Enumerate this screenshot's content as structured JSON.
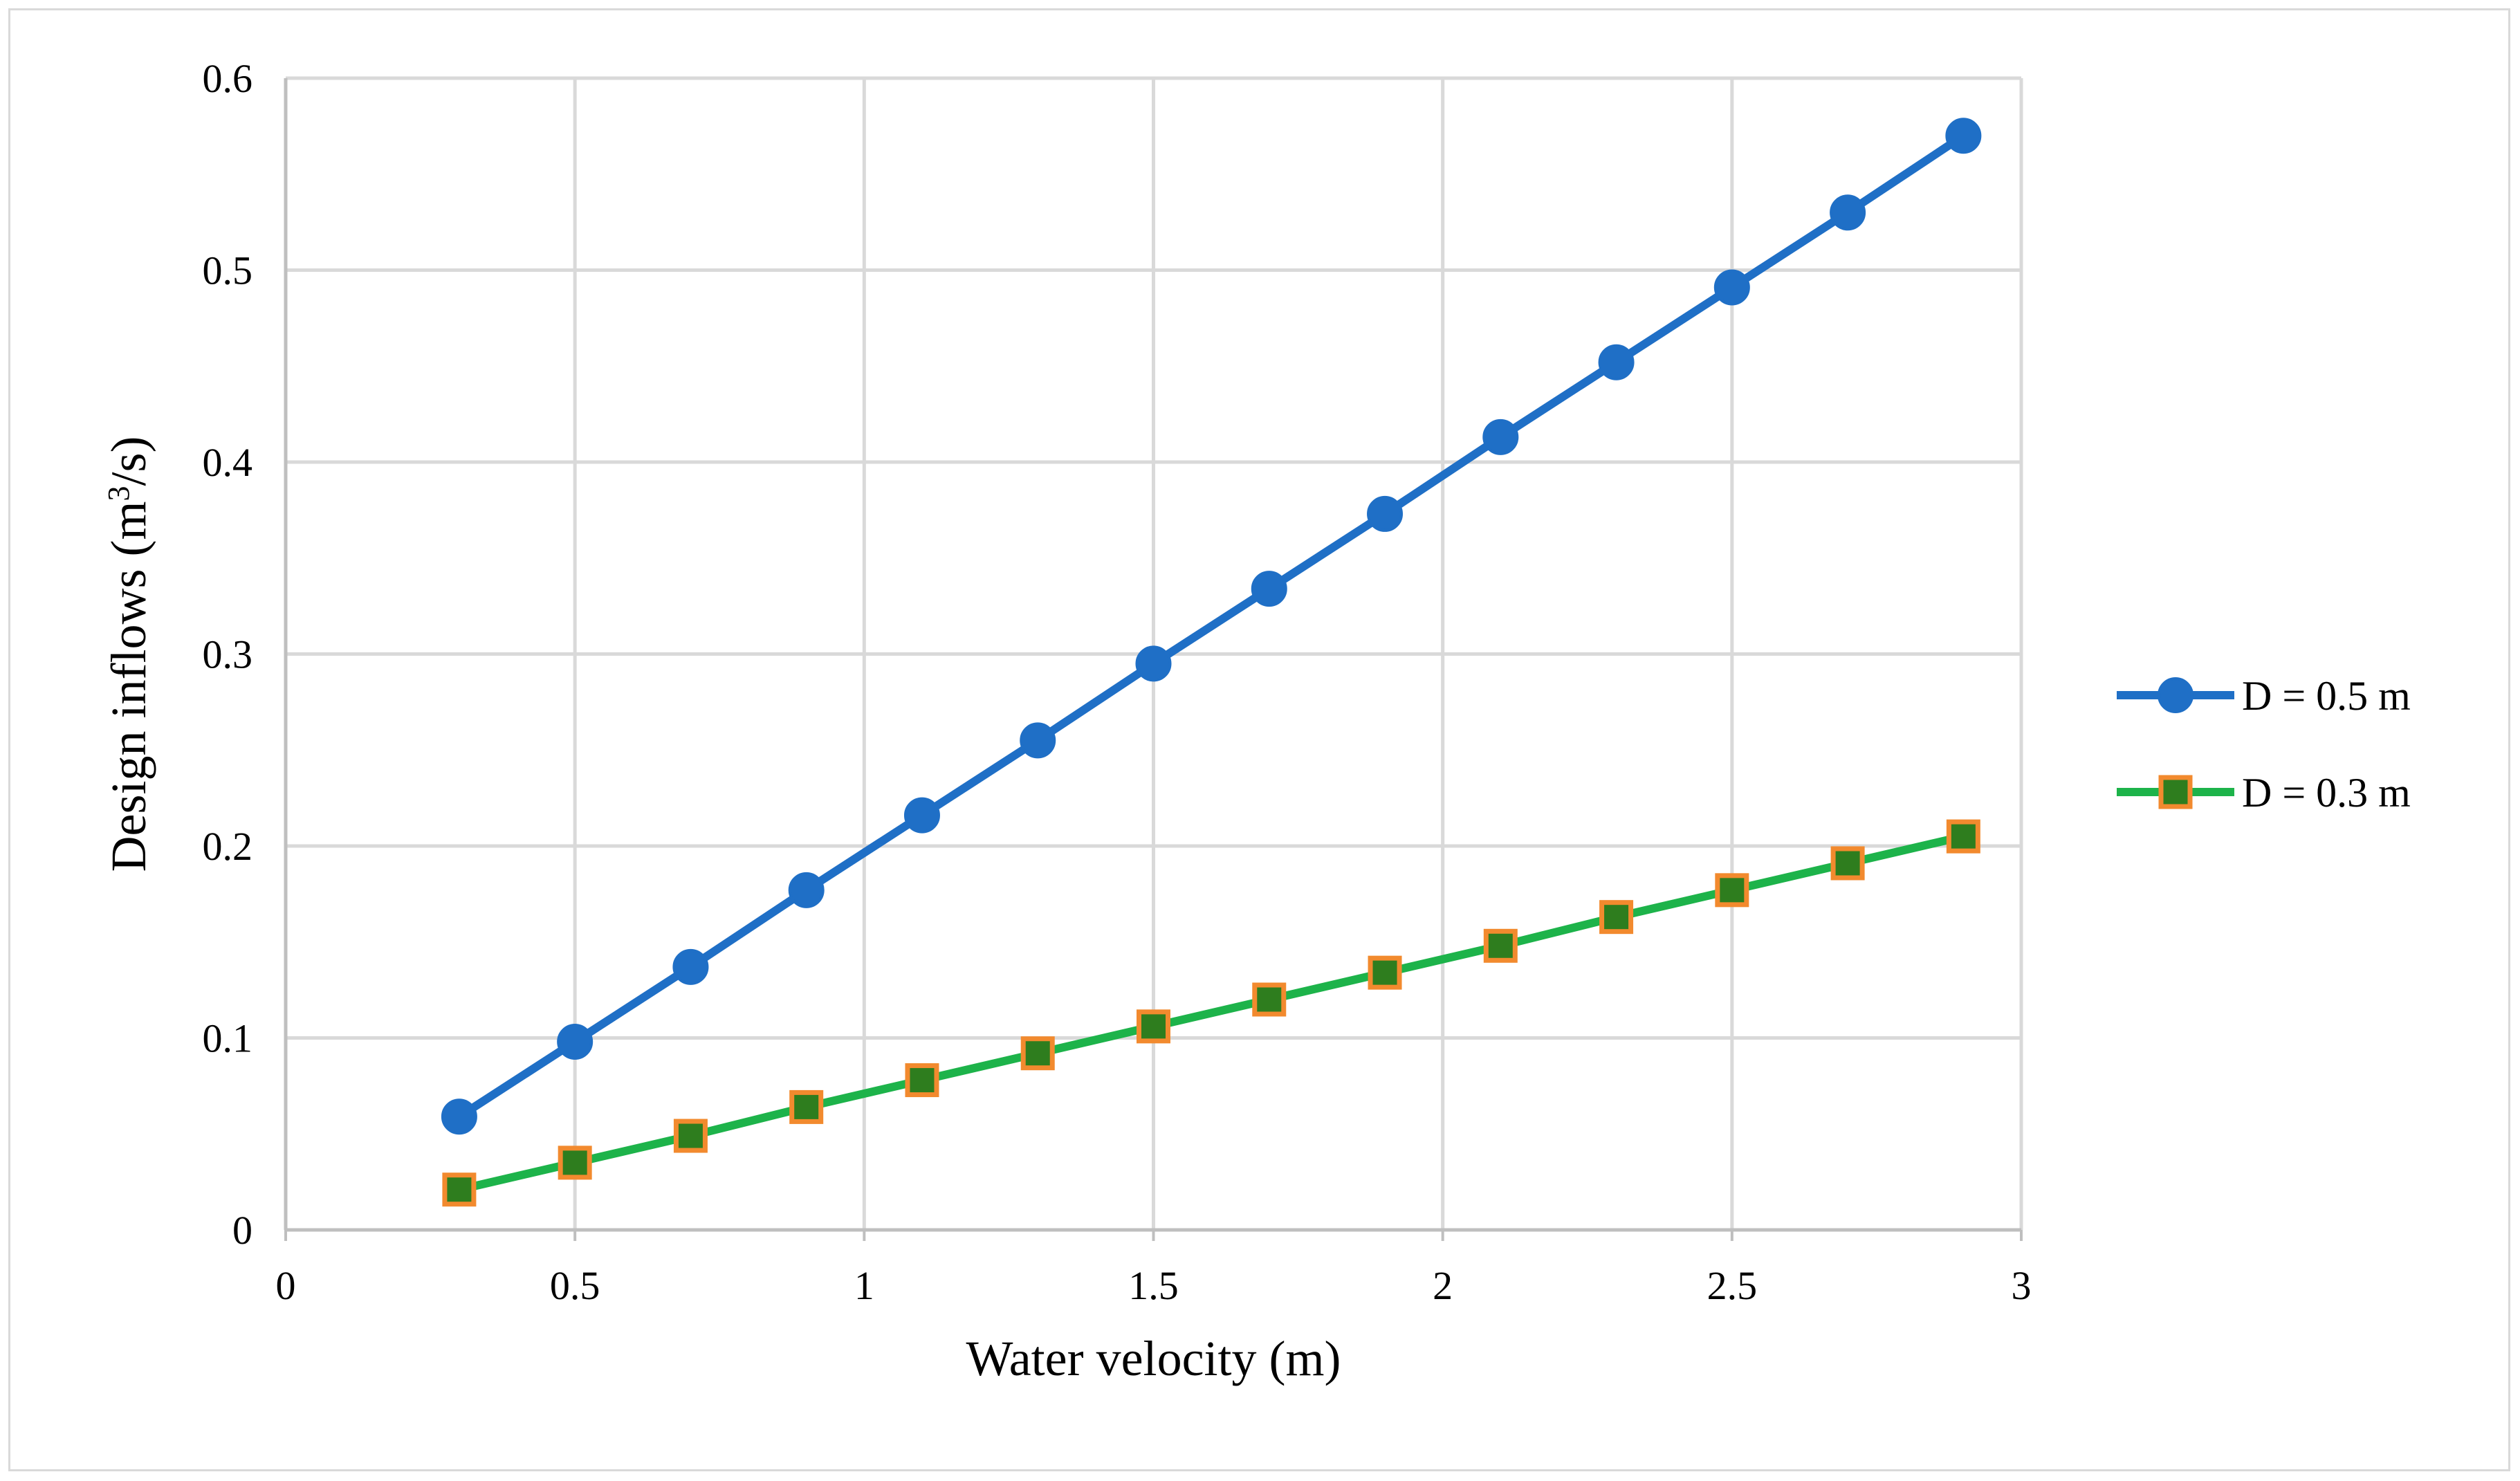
{
  "chart_data": {
    "type": "line",
    "title": "",
    "xlabel": "Water velocity (m)",
    "ylabel_parts": {
      "before": "Design inflows (m",
      "superscript": "3",
      "after": "/s)"
    },
    "xlim": [
      0,
      3
    ],
    "ylim": [
      0,
      0.6
    ],
    "x_ticks": [
      0,
      0.5,
      1,
      1.5,
      2,
      2.5,
      3
    ],
    "x_tick_labels": [
      "0",
      "0.5",
      "1",
      "1.5",
      "2",
      "2.5",
      "3"
    ],
    "y_ticks": [
      0,
      0.1,
      0.2,
      0.3,
      0.4,
      0.5,
      0.6
    ],
    "y_tick_labels": [
      "0",
      "0.1",
      "0.2",
      "0.3",
      "0.4",
      "0.5",
      "0.6"
    ],
    "grid": true,
    "legend_position": "right",
    "x": [
      0.3,
      0.5,
      0.7,
      0.9,
      1.1,
      1.3,
      1.5,
      1.7,
      1.9,
      2.1,
      2.3,
      2.5,
      2.7,
      2.9
    ],
    "series": [
      {
        "name": "D = 0.5 m",
        "marker": "circle",
        "color": "#1f6fc6",
        "marker_fill": "#1f6fc6",
        "marker_edge": "#1f6fc6",
        "values": [
          0.059,
          0.098,
          0.137,
          0.177,
          0.216,
          0.255,
          0.295,
          0.334,
          0.373,
          0.413,
          0.452,
          0.491,
          0.53,
          0.57
        ]
      },
      {
        "name": "D = 0.3 m",
        "marker": "square",
        "color": "#1db34a",
        "marker_fill": "#2e7d1e",
        "marker_edge": "#f28a2e",
        "values": [
          0.021,
          0.035,
          0.049,
          0.064,
          0.078,
          0.092,
          0.106,
          0.12,
          0.134,
          0.148,
          0.163,
          0.177,
          0.191,
          0.205
        ]
      }
    ],
    "colors": {
      "grid": "#d9d9d9",
      "axis": "#bfbfbf"
    }
  }
}
